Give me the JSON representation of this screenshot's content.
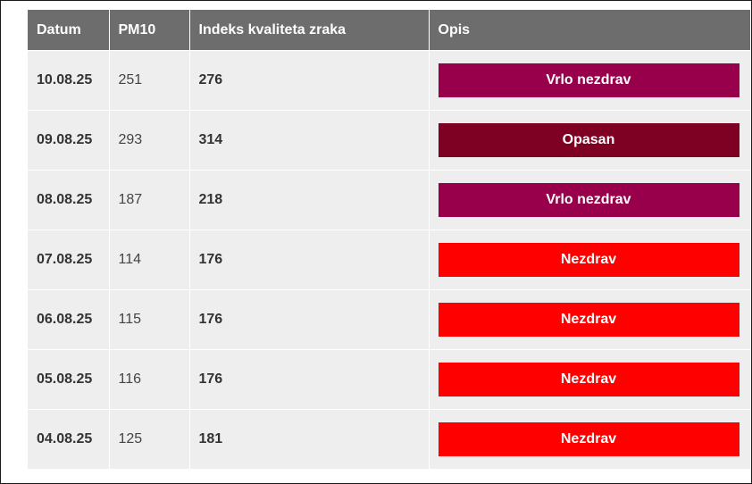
{
  "table": {
    "headers": {
      "date": "Datum",
      "pm10": "PM10",
      "index": "Indeks kvaliteta zraka",
      "description": "Opis"
    },
    "rows": [
      {
        "date": "10.08.25",
        "pm10": "251",
        "index": "276",
        "description": "Vrlo nezdrav",
        "color": "#99004c"
      },
      {
        "date": "09.08.25",
        "pm10": "293",
        "index": "314",
        "description": "Opasan",
        "color": "#7e0023"
      },
      {
        "date": "08.08.25",
        "pm10": "187",
        "index": "218",
        "description": "Vrlo nezdrav",
        "color": "#99004c"
      },
      {
        "date": "07.08.25",
        "pm10": "114",
        "index": "176",
        "description": "Nezdrav",
        "color": "#ff0000"
      },
      {
        "date": "06.08.25",
        "pm10": "115",
        "index": "176",
        "description": "Nezdrav",
        "color": "#ff0000"
      },
      {
        "date": "05.08.25",
        "pm10": "116",
        "index": "176",
        "description": "Nezdrav",
        "color": "#ff0000"
      },
      {
        "date": "04.08.25",
        "pm10": "125",
        "index": "181",
        "description": "Nezdrav",
        "color": "#ff0000"
      }
    ]
  },
  "colors": {
    "header_background": "#6d6d6d",
    "row_background": "#eeeeee"
  }
}
